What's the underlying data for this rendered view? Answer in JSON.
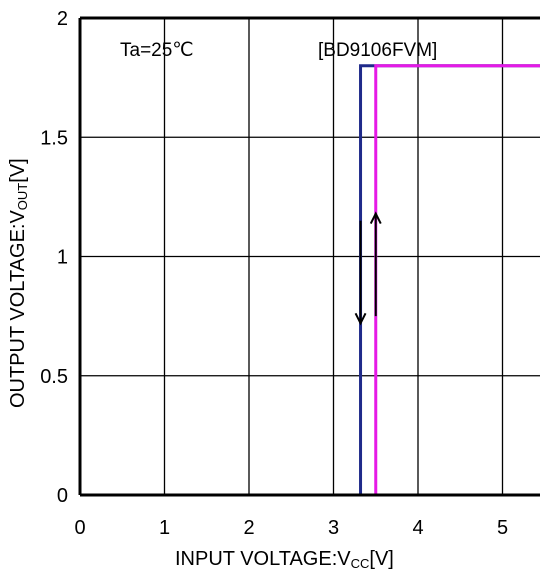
{
  "chart_data": {
    "type": "line",
    "title": "",
    "xlabel": "INPUT VOLTAGE:V",
    "xlabel_subscript": "CC",
    "xlabel_unit": "[V]",
    "ylabel": "OUTPUT VOLTAGE:V",
    "ylabel_subscript": "OUT",
    "ylabel_unit": "[V]",
    "xlim": [
      0,
      5.5
    ],
    "ylim": [
      0,
      2
    ],
    "x_ticks": [
      0,
      1,
      2,
      3,
      4,
      5
    ],
    "x_tick_labels": [
      "0",
      "1",
      "2",
      "3",
      "4",
      "5"
    ],
    "y_ticks": [
      0,
      0.5,
      1,
      1.5,
      2
    ],
    "y_tick_labels": [
      "0",
      "0.5",
      "1",
      "1.5",
      "2"
    ],
    "grid": true,
    "annotations": [
      "Ta=25℃",
      "[BD9106FVM]"
    ],
    "series": [
      {
        "color": "#1f2a8a",
        "direction": "falling",
        "x": [
          3.32,
          3.32,
          5.5
        ],
        "y": [
          0,
          1.8,
          1.8
        ]
      },
      {
        "color": "#e619e6",
        "direction": "rising",
        "x": [
          0,
          3.5,
          3.5,
          5.5
        ],
        "y": [
          0,
          0,
          1.8,
          1.8
        ]
      }
    ]
  }
}
